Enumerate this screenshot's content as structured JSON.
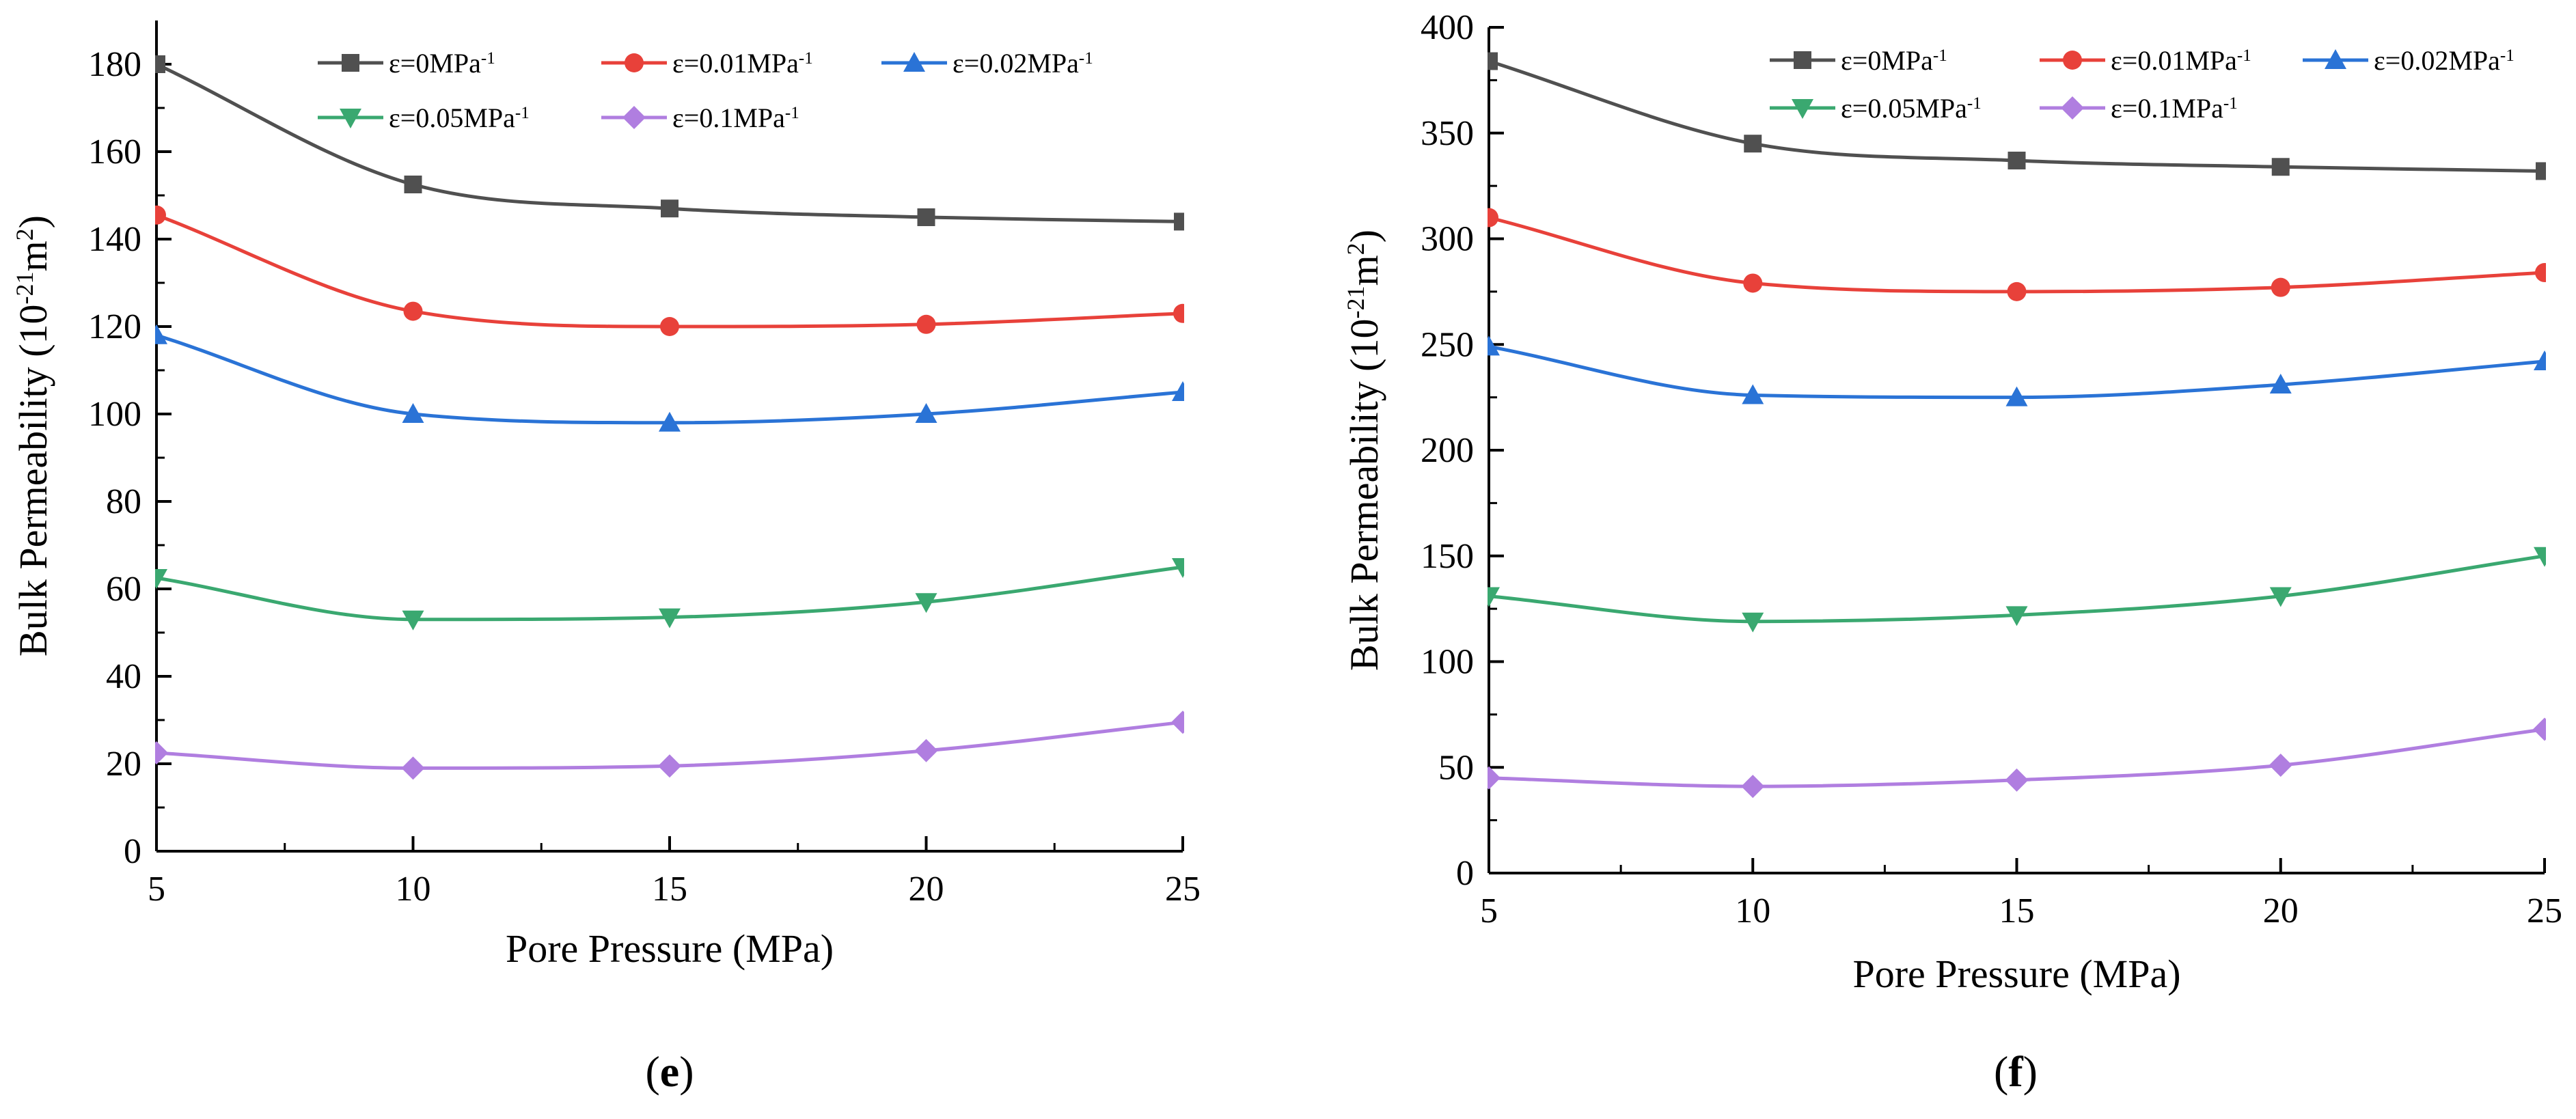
{
  "chart_data": [
    {
      "type": "line",
      "panel_label": "e",
      "title": "",
      "xlabel": "Pore Pressure (MPa)",
      "ylabel": "Bulk Permeability (10⁻²¹m²)",
      "xlim": [
        5,
        25
      ],
      "ylim": [
        0,
        190
      ],
      "xticks": [
        5,
        10,
        15,
        20,
        25
      ],
      "yticks": [
        0,
        20,
        40,
        60,
        80,
        100,
        120,
        140,
        160,
        180
      ],
      "grid": false,
      "legend_position": "top",
      "x": [
        5,
        10,
        15,
        20,
        25
      ],
      "series": [
        {
          "name": "ε=0MPa⁻¹",
          "color": "#505050",
          "marker": "square",
          "values": [
            180,
            152.5,
            147,
            145,
            144
          ]
        },
        {
          "name": "ε=0.01MPa⁻¹",
          "color": "#e8413a",
          "marker": "circle",
          "values": [
            145.5,
            123.5,
            120,
            120.5,
            123
          ]
        },
        {
          "name": "ε=0.02MPa⁻¹",
          "color": "#2a73d6",
          "marker": "triangle-up",
          "values": [
            118,
            100,
            98,
            100,
            105
          ]
        },
        {
          "name": "ε=0.05MPa⁻¹",
          "color": "#3aa870",
          "marker": "triangle-down",
          "values": [
            62.5,
            53,
            53.5,
            57,
            65
          ]
        },
        {
          "name": "ε=0.1MPa⁻¹",
          "color": "#b07ee0",
          "marker": "diamond",
          "values": [
            22.5,
            19,
            19.5,
            23,
            29.5
          ]
        }
      ]
    },
    {
      "type": "line",
      "panel_label": "f",
      "title": "",
      "xlabel": "Pore Pressure (MPa)",
      "ylabel": "Bulk Permeability (10⁻²¹m²)",
      "xlim": [
        5,
        25
      ],
      "ylim": [
        0,
        400
      ],
      "xticks": [
        5,
        10,
        15,
        20,
        25
      ],
      "yticks": [
        0,
        50,
        100,
        150,
        200,
        250,
        300,
        350,
        400
      ],
      "grid": false,
      "legend_position": "top",
      "x": [
        5,
        10,
        15,
        20,
        25
      ],
      "series": [
        {
          "name": "ε=0MPa⁻¹",
          "color": "#505050",
          "marker": "square",
          "values": [
            384,
            345,
            337,
            334,
            332
          ]
        },
        {
          "name": "ε=0.01MPa⁻¹",
          "color": "#e8413a",
          "marker": "circle",
          "values": [
            310,
            279,
            275,
            277,
            284
          ]
        },
        {
          "name": "ε=0.02MPa⁻¹",
          "color": "#2a73d6",
          "marker": "triangle-up",
          "values": [
            249,
            226,
            225,
            231,
            242
          ]
        },
        {
          "name": "ε=0.05MPa⁻¹",
          "color": "#3aa870",
          "marker": "triangle-down",
          "values": [
            131,
            119,
            122,
            131,
            150
          ]
        },
        {
          "name": "ε=0.1MPa⁻¹",
          "color": "#b07ee0",
          "marker": "diamond",
          "values": [
            45,
            41,
            44,
            51,
            68
          ]
        }
      ]
    }
  ]
}
